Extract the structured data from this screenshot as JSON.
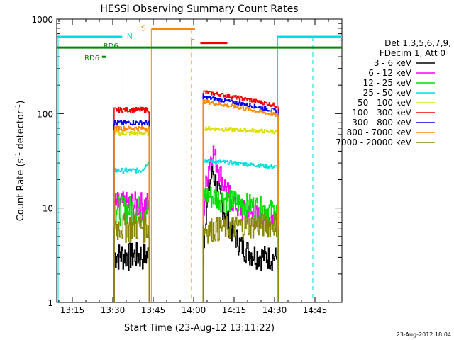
{
  "chart_data": {
    "type": "line",
    "title": "HESSI Observing Summary Count Rates",
    "xlabel": "Start Time (23-Aug-12 13:11:22)",
    "ylabel_main": "Count Rate (s",
    "ylabel_sup": "-1",
    "ylabel_mid": " detector",
    "ylabel_sup2": "-1",
    "ylabel_end": ")",
    "x_unit": "minutes after 13:00 UT",
    "xlim": [
      8,
      52
    ],
    "ylim": [
      1,
      1000
    ],
    "yscale": "log",
    "x_ticks": [
      {
        "v": 15,
        "label": "13:15"
      },
      {
        "v": 30,
        "label": "13:30"
      },
      {
        "v": 45,
        "label": "13:45"
      },
      {
        "v": 60,
        "label": "14:00"
      },
      {
        "v": 75,
        "label": "14:15"
      },
      {
        "v": 90,
        "label": "14:30"
      },
      {
        "v": 105,
        "label": "14:45"
      }
    ],
    "y_ticks": [
      {
        "v": 1,
        "label": "1"
      },
      {
        "v": 10,
        "label": "10"
      },
      {
        "v": 100,
        "label": "100"
      },
      {
        "v": 1000,
        "label": "1000"
      }
    ],
    "legend_header": [
      "Det 1,3,5,6,7,9,",
      "FDecim 1, Att 0"
    ],
    "legend_position": "right",
    "series": [
      {
        "name": "3 - 6 keV",
        "color": "#000000",
        "seg1": 3.2,
        "seg2_peak": 25,
        "seg2_end": 3
      },
      {
        "name": "6 - 12 keV",
        "color": "#ff00ff",
        "seg1": 11,
        "seg2_peak": 42,
        "seg2_end": 8
      },
      {
        "name": "12 - 25 keV",
        "color": "#00dd00",
        "seg1": 10,
        "seg2_peak": 14,
        "seg2_end": 9
      },
      {
        "name": "25 - 50 keV",
        "color": "#00dddd",
        "seg1": 25,
        "seg2_peak": 32,
        "seg2_end": 27
      },
      {
        "name": "50 - 100 keV",
        "color": "#dddd00",
        "seg1": 62,
        "seg2_peak": 70,
        "seg2_end": 64
      },
      {
        "name": "100 - 300 keV",
        "color": "#ee0000",
        "seg1": 110,
        "seg2_peak": 170,
        "seg2_end": 120
      },
      {
        "name": "300 - 800 keV",
        "color": "#0000ee",
        "seg1": 80,
        "seg2_peak": 150,
        "seg2_end": 105
      },
      {
        "name": "800 - 7000 keV",
        "color": "#ff8800",
        "seg1": 70,
        "seg2_peak": 135,
        "seg2_end": 95
      },
      {
        "name": "7000 - 20000 keV",
        "color": "#888800",
        "seg1": 6.5,
        "seg2_peak": 6,
        "seg2_end": 7
      }
    ],
    "intervals": {
      "night": {
        "label": "N",
        "color": "#00dddd",
        "value": 650
      },
      "saa": {
        "label": "S",
        "color": "#ff8800",
        "value": 780
      },
      "flare": {
        "label": "F",
        "color": "#ee0000",
        "value": 560
      },
      "rd6_main": {
        "label": "RD6",
        "color": "#008800",
        "value": 500
      },
      "rd6_short": {
        "label": "RD6",
        "color": "#008800",
        "value": 420
      }
    },
    "footer_date": "23-Aug-2012 18:04"
  }
}
